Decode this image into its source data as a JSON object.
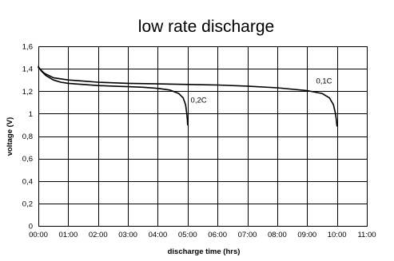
{
  "chart_data": {
    "type": "line",
    "title": "low rate discharge",
    "xlabel": "discharge time (hrs)",
    "ylabel": "voltage (V)",
    "xlim": [
      0,
      11
    ],
    "ylim": [
      0,
      1.6
    ],
    "grid": true,
    "legend": "none",
    "x_ticks": [
      {
        "value": 0,
        "label": "00:00"
      },
      {
        "value": 1,
        "label": "01:00"
      },
      {
        "value": 2,
        "label": "02:00"
      },
      {
        "value": 3,
        "label": "03:00"
      },
      {
        "value": 4,
        "label": "04:00"
      },
      {
        "value": 5,
        "label": "05:00"
      },
      {
        "value": 6,
        "label": "06:00"
      },
      {
        "value": 7,
        "label": "07:00"
      },
      {
        "value": 8,
        "label": "08:00"
      },
      {
        "value": 9,
        "label": "09:00"
      },
      {
        "value": 10,
        "label": "10:00"
      },
      {
        "value": 11,
        "label": "11:00"
      }
    ],
    "y_ticks": [
      {
        "value": 0,
        "label": "0"
      },
      {
        "value": 0.2,
        "label": "0,2"
      },
      {
        "value": 0.4,
        "label": "0,4"
      },
      {
        "value": 0.6,
        "label": "0,6"
      },
      {
        "value": 0.8,
        "label": "0,8"
      },
      {
        "value": 1.0,
        "label": "1"
      },
      {
        "value": 1.2,
        "label": "1,2"
      },
      {
        "value": 1.4,
        "label": "1,4"
      },
      {
        "value": 1.6,
        "label": "1,6"
      }
    ],
    "series": [
      {
        "name": "0,2C",
        "label_anchor": {
          "x": 5.1,
          "y": 1.1
        },
        "points": [
          [
            0,
            1.42
          ],
          [
            0.1,
            1.38
          ],
          [
            0.25,
            1.34
          ],
          [
            0.5,
            1.3
          ],
          [
            0.75,
            1.28
          ],
          [
            1,
            1.27
          ],
          [
            1.5,
            1.26
          ],
          [
            2,
            1.25
          ],
          [
            2.5,
            1.245
          ],
          [
            3,
            1.24
          ],
          [
            3.5,
            1.235
          ],
          [
            4,
            1.225
          ],
          [
            4.4,
            1.21
          ],
          [
            4.7,
            1.18
          ],
          [
            4.85,
            1.14
          ],
          [
            4.93,
            1.08
          ],
          [
            4.97,
            1.0
          ],
          [
            4.99,
            0.95
          ],
          [
            5.0,
            0.9
          ]
        ]
      },
      {
        "name": "0,1C",
        "label_anchor": {
          "x": 9.3,
          "y": 1.27
        },
        "points": [
          [
            0,
            1.41
          ],
          [
            0.2,
            1.36
          ],
          [
            0.5,
            1.32
          ],
          [
            1,
            1.3
          ],
          [
            1.5,
            1.29
          ],
          [
            2,
            1.28
          ],
          [
            3,
            1.27
          ],
          [
            4,
            1.265
          ],
          [
            5,
            1.26
          ],
          [
            6,
            1.255
          ],
          [
            7,
            1.245
          ],
          [
            8,
            1.23
          ],
          [
            9,
            1.205
          ],
          [
            9.5,
            1.18
          ],
          [
            9.75,
            1.14
          ],
          [
            9.88,
            1.08
          ],
          [
            9.95,
            1.0
          ],
          [
            9.98,
            0.94
          ],
          [
            10.0,
            0.89
          ]
        ]
      }
    ]
  }
}
